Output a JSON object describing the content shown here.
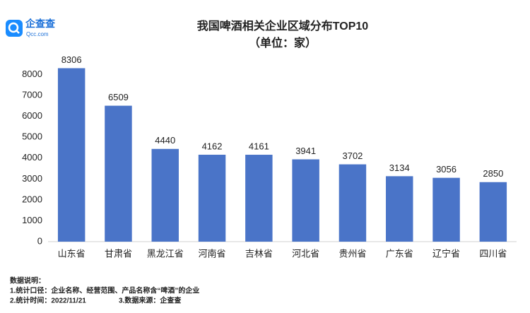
{
  "chart_data": {
    "type": "bar",
    "title": "我国啤酒相关企业区域分布TOP10",
    "subtitle": "（单位：家）",
    "logo_text": "企查查",
    "logo_url": "Qcc.com",
    "categories": [
      "山东省",
      "甘肃省",
      "黑龙江省",
      "河南省",
      "吉林省",
      "河北省",
      "贵州省",
      "广东省",
      "辽宁省",
      "四川省"
    ],
    "values": [
      8306,
      6509,
      4440,
      4162,
      4161,
      3941,
      3702,
      3134,
      3056,
      2850
    ],
    "color": "#4a74c8",
    "ylim": [
      0,
      9000
    ],
    "yticks": [
      0,
      1000,
      2000,
      3000,
      4000,
      5000,
      6000,
      7000,
      8000
    ],
    "grid": false,
    "notes": [
      "数据说明：",
      "1.统计口径：企业名称、经营范围、产品名称含“啤酒”的企业",
      "2.统计时间：2022/11/21",
      "3.数据来源：企查查"
    ]
  }
}
